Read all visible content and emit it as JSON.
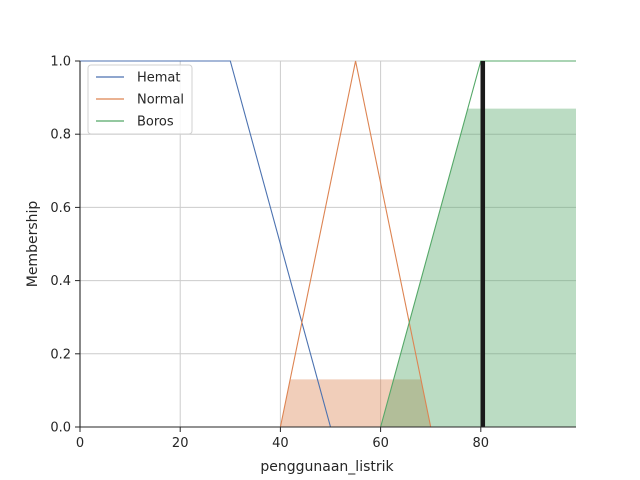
{
  "chart_data": {
    "type": "line",
    "title": "",
    "xlabel": "penggunaan_listrik",
    "ylabel": "Membership",
    "xlim": [
      0,
      99
    ],
    "ylim": [
      0,
      1.0
    ],
    "xticks": [
      0,
      20,
      40,
      60,
      80
    ],
    "xtick_labels": [
      "0",
      "20",
      "40",
      "60",
      "80"
    ],
    "yticks": [
      0,
      0.2,
      0.4,
      0.6,
      0.8,
      1.0
    ],
    "ytick_labels": [
      "0.0",
      "0.2",
      "0.4",
      "0.6",
      "0.8",
      "1.0"
    ],
    "grid": true,
    "legend_position": "top-left",
    "series": [
      {
        "name": "Hemat",
        "color": "#4c72b0",
        "x": [
          0,
          30,
          50,
          99
        ],
        "y": [
          1,
          1,
          0,
          0
        ]
      },
      {
        "name": "Normal",
        "color": "#dd8452",
        "x": [
          0,
          40,
          55,
          70,
          99
        ],
        "y": [
          0,
          0,
          1,
          0,
          0
        ]
      },
      {
        "name": "Boros",
        "color": "#55a868",
        "x": [
          0,
          60,
          80,
          99
        ],
        "y": [
          0,
          0,
          1,
          1
        ]
      }
    ],
    "activations": [
      {
        "series": "Normal",
        "color": "#dd8452",
        "level": 0.13
      },
      {
        "series": "Boros",
        "color": "#55a868",
        "level": 0.87
      }
    ],
    "result_marker": {
      "x": 80.4,
      "y": 1.0,
      "color": "#1a1a1a"
    }
  }
}
